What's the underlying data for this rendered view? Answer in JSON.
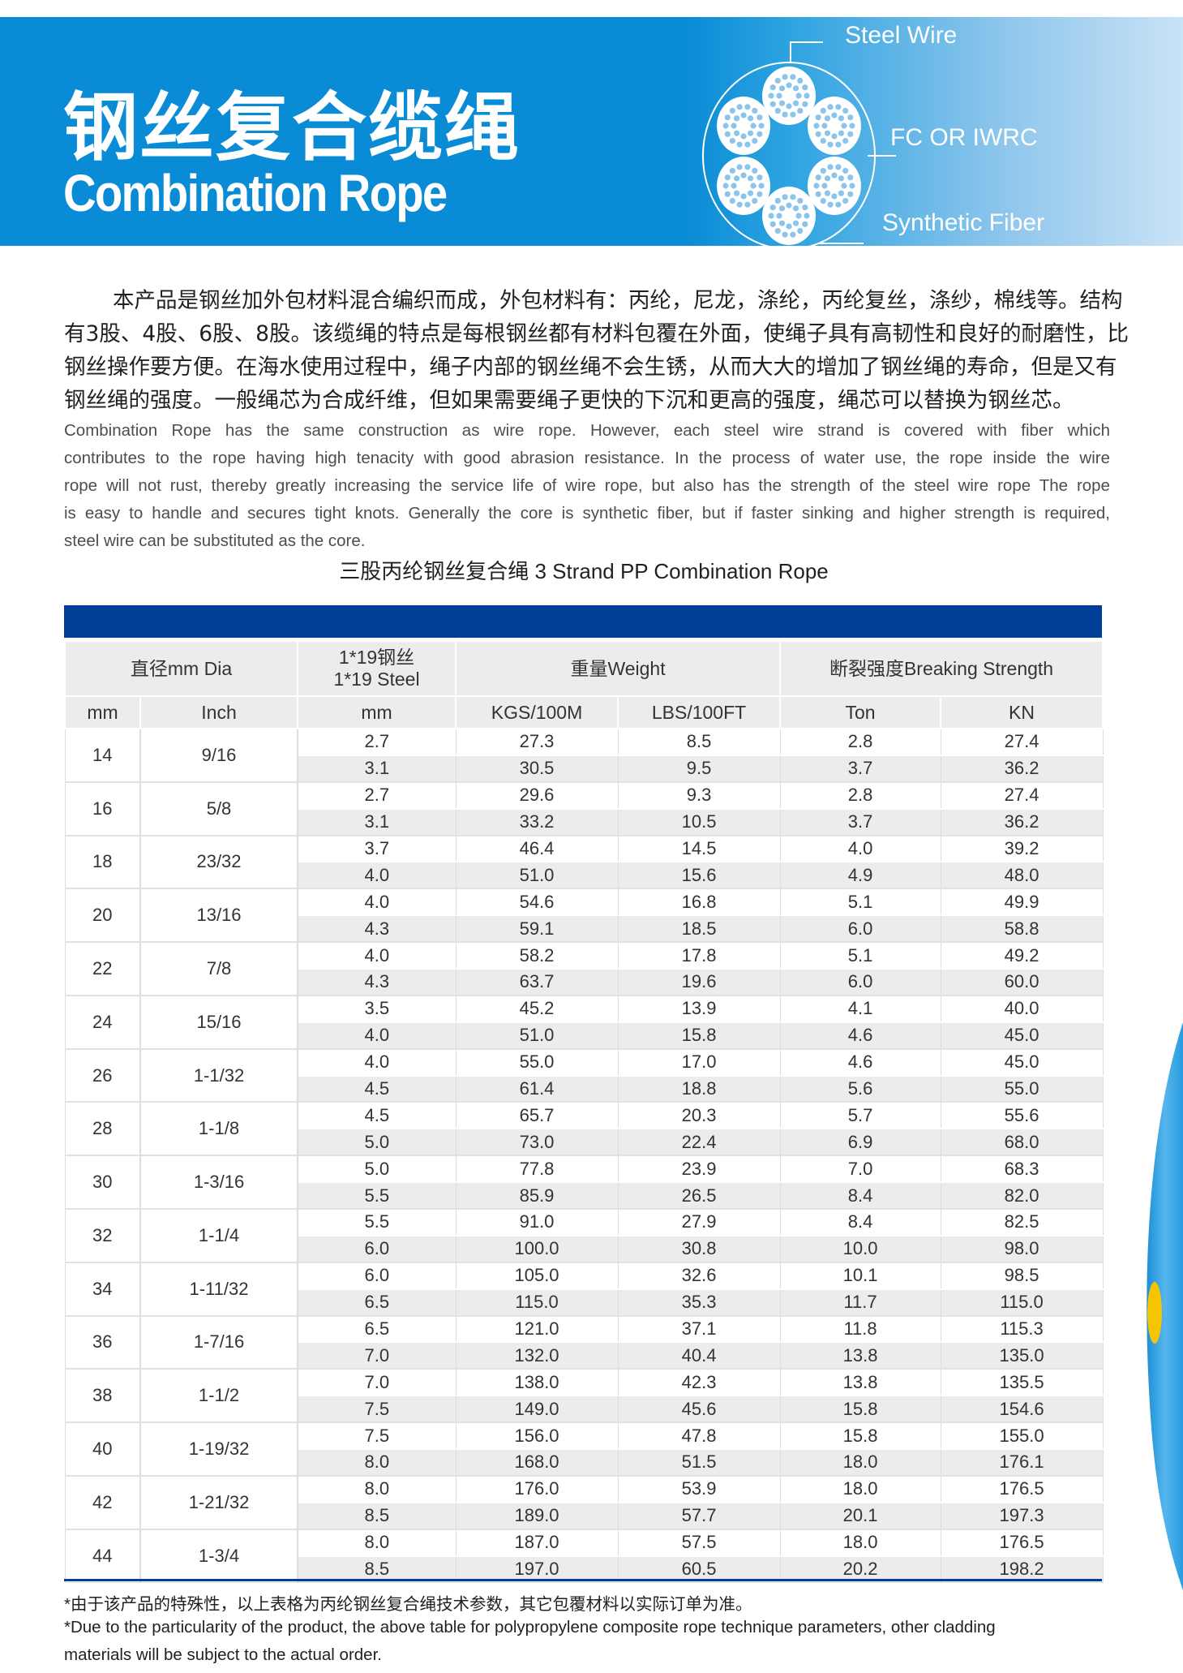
{
  "header": {
    "title_cn": "钢丝复合缆绳",
    "title_en": "Combination Rope",
    "diagram_labels": {
      "steel_wire": "Steel Wire",
      "core": "FC OR IWRC",
      "fiber": "Synthetic Fiber"
    },
    "colors": {
      "banner": "#0a8bd6",
      "table_bar": "#003f98"
    }
  },
  "description": {
    "cn_lines": [
      "本产品是钢丝加外包材料混合编织而成，外包材料有：丙纶，尼龙，涤纶，丙纶复丝，涤纱，棉线等。结构",
      "有3股、4股、6股、8股。该缆绳的特点是每根钢丝都有材料包覆在外面，使绳子具有高韧性和良好的耐磨性，比",
      "钢丝操作要方便。在海水使用过程中，绳子内部的钢丝绳不会生锈，从而大大的增加了钢丝绳的寿命，但是又有",
      "钢丝绳的强度。一般绳芯为合成纤维，但如果需要绳子更快的下沉和更高的强度，绳芯可以替换为钢丝芯。"
    ],
    "en_lines": [
      "Combination Rope has the same construction as wire rope. However, each steel wire strand is covered with fiber which",
      "contributes to the rope having high tenacity with good abrasion resistance. In the process of water use, the rope inside the wire",
      "rope will not rust, thereby greatly increasing the service life of wire rope, but also has the strength of the steel wire rope The rope",
      "is easy to handle and secures tight knots. Generally the core is synthetic fiber, but if faster sinking and higher strength is required,",
      "steel wire can be substituted as the core."
    ]
  },
  "table": {
    "subtitle": "三股丙纶钢丝复合绳  3 Strand PP Combination Rope",
    "header_row1": {
      "dia": "直径mm Dia",
      "steel_cn": "1*19钢丝",
      "steel_en": "1*19 Steel",
      "weight": "重量Weight",
      "strength": "断裂强度Breaking Strength"
    },
    "header_row2": [
      "mm",
      "Inch",
      "mm",
      "KGS/100M",
      "LBS/100FT",
      "Ton",
      "KN"
    ],
    "groups": [
      {
        "mm": "14",
        "inch": "9/16",
        "rows": [
          [
            "2.7",
            "27.3",
            "8.5",
            "2.8",
            "27.4"
          ],
          [
            "3.1",
            "30.5",
            "9.5",
            "3.7",
            "36.2"
          ]
        ]
      },
      {
        "mm": "16",
        "inch": "5/8",
        "rows": [
          [
            "2.7",
            "29.6",
            "9.3",
            "2.8",
            "27.4"
          ],
          [
            "3.1",
            "33.2",
            "10.5",
            "3.7",
            "36.2"
          ]
        ]
      },
      {
        "mm": "18",
        "inch": "23/32",
        "rows": [
          [
            "3.7",
            "46.4",
            "14.5",
            "4.0",
            "39.2"
          ],
          [
            "4.0",
            "51.0",
            "15.6",
            "4.9",
            "48.0"
          ]
        ]
      },
      {
        "mm": "20",
        "inch": "13/16",
        "rows": [
          [
            "4.0",
            "54.6",
            "16.8",
            "5.1",
            "49.9"
          ],
          [
            "4.3",
            "59.1",
            "18.5",
            "6.0",
            "58.8"
          ]
        ]
      },
      {
        "mm": "22",
        "inch": "7/8",
        "rows": [
          [
            "4.0",
            "58.2",
            "17.8",
            "5.1",
            "49.2"
          ],
          [
            "4.3",
            "63.7",
            "19.6",
            "6.0",
            "60.0"
          ]
        ]
      },
      {
        "mm": "24",
        "inch": "15/16",
        "rows": [
          [
            "3.5",
            "45.2",
            "13.9",
            "4.1",
            "40.0"
          ],
          [
            "4.0",
            "51.0",
            "15.8",
            "4.6",
            "45.0"
          ]
        ]
      },
      {
        "mm": "26",
        "inch": "1-1/32",
        "rows": [
          [
            "4.0",
            "55.0",
            "17.0",
            "4.6",
            "45.0"
          ],
          [
            "4.5",
            "61.4",
            "18.8",
            "5.6",
            "55.0"
          ]
        ]
      },
      {
        "mm": "28",
        "inch": "1-1/8",
        "rows": [
          [
            "4.5",
            "65.7",
            "20.3",
            "5.7",
            "55.6"
          ],
          [
            "5.0",
            "73.0",
            "22.4",
            "6.9",
            "68.0"
          ]
        ]
      },
      {
        "mm": "30",
        "inch": "1-3/16",
        "rows": [
          [
            "5.0",
            "77.8",
            "23.9",
            "7.0",
            "68.3"
          ],
          [
            "5.5",
            "85.9",
            "26.5",
            "8.4",
            "82.0"
          ]
        ]
      },
      {
        "mm": "32",
        "inch": "1-1/4",
        "rows": [
          [
            "5.5",
            "91.0",
            "27.9",
            "8.4",
            "82.5"
          ],
          [
            "6.0",
            "100.0",
            "30.8",
            "10.0",
            "98.0"
          ]
        ]
      },
      {
        "mm": "34",
        "inch": "1-11/32",
        "rows": [
          [
            "6.0",
            "105.0",
            "32.6",
            "10.1",
            "98.5"
          ],
          [
            "6.5",
            "115.0",
            "35.3",
            "11.7",
            "115.0"
          ]
        ]
      },
      {
        "mm": "36",
        "inch": "1-7/16",
        "rows": [
          [
            "6.5",
            "121.0",
            "37.1",
            "11.8",
            "115.3"
          ],
          [
            "7.0",
            "132.0",
            "40.4",
            "13.8",
            "135.0"
          ]
        ]
      },
      {
        "mm": "38",
        "inch": "1-1/2",
        "rows": [
          [
            "7.0",
            "138.0",
            "42.3",
            "13.8",
            "135.5"
          ],
          [
            "7.5",
            "149.0",
            "45.6",
            "15.8",
            "154.6"
          ]
        ]
      },
      {
        "mm": "40",
        "inch": "1-19/32",
        "rows": [
          [
            "7.5",
            "156.0",
            "47.8",
            "15.8",
            "155.0"
          ],
          [
            "8.0",
            "168.0",
            "51.5",
            "18.0",
            "176.1"
          ]
        ]
      },
      {
        "mm": "42",
        "inch": "1-21/32",
        "rows": [
          [
            "8.0",
            "176.0",
            "53.9",
            "18.0",
            "176.5"
          ],
          [
            "8.5",
            "189.0",
            "57.7",
            "20.1",
            "197.3"
          ]
        ]
      },
      {
        "mm": "44",
        "inch": "1-3/4",
        "rows": [
          [
            "8.0",
            "187.0",
            "57.5",
            "18.0",
            "176.5"
          ],
          [
            "8.5",
            "197.0",
            "60.5",
            "20.2",
            "198.2"
          ]
        ]
      }
    ]
  },
  "notes": {
    "cn": "*由于该产品的特殊性，以上表格为丙纶钢丝复合绳技术参数，其它包覆材料以实际订单为准。",
    "en_line1": "*Due to the particularity of the product, the above table for polypropylene composite rope technique parameters, other cladding",
    "en_line2": " materials will be subject to the actual order."
  }
}
